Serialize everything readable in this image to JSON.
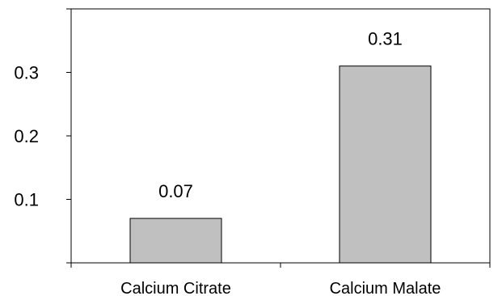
{
  "chart_data": {
    "type": "bar",
    "title": "",
    "xlabel": "",
    "ylabel": "",
    "categories": [
      "Calcium Citrate",
      "Calcium Malate"
    ],
    "values": [
      0.07,
      0.31
    ],
    "data_labels": [
      "0.07",
      "0.31"
    ],
    "ylim": [
      0,
      0.4
    ],
    "yticks": [
      0,
      0.1,
      0.2,
      0.3,
      0.4
    ],
    "ytick_labels": [
      "0.1",
      "0.2",
      "0.3"
    ],
    "grid": false,
    "legend": "none",
    "bar_color": "#c0c0c0",
    "bar_edge_color": "#000000"
  }
}
